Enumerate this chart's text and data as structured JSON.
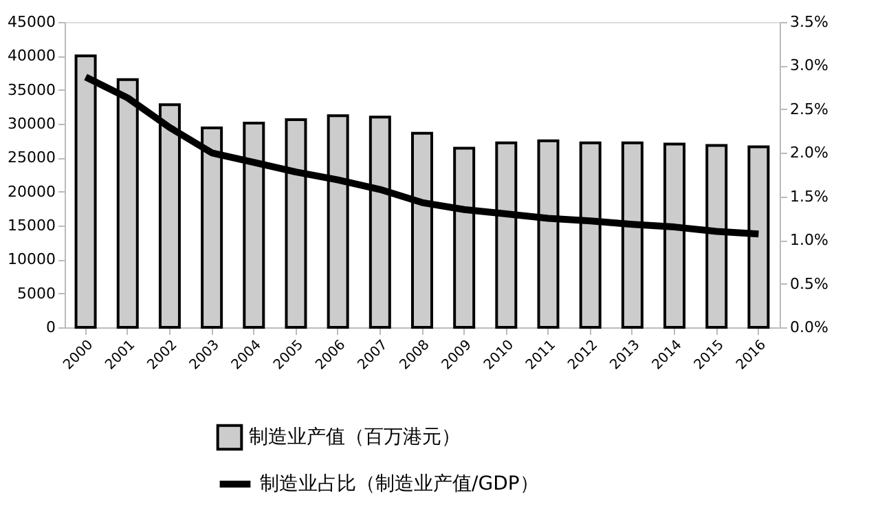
{
  "chart_data": {
    "type": "bar",
    "categories": [
      "2000",
      "2001",
      "2002",
      "2003",
      "2004",
      "2005",
      "2006",
      "2007",
      "2008",
      "2009",
      "2010",
      "2011",
      "2012",
      "2013",
      "2014",
      "2015",
      "2016"
    ],
    "series": [
      {
        "name": "制造业产值（百万港元）",
        "color": "#cccccc",
        "values": [
          40000,
          36500,
          32800,
          29400,
          30100,
          30600,
          31200,
          31000,
          28600,
          26400,
          27200,
          27500,
          27200,
          27200,
          27000,
          26800,
          26600
        ]
      },
      {
        "name": "制造业占比（制造业产值/GDP）",
        "type": "line",
        "axis": "y2",
        "color": "#000000",
        "values": [
          2.87,
          2.63,
          2.29,
          2.0,
          1.89,
          1.78,
          1.69,
          1.58,
          1.43,
          1.35,
          1.3,
          1.25,
          1.22,
          1.18,
          1.15,
          1.1,
          1.07
        ]
      }
    ],
    "ylim": [
      0,
      45000
    ],
    "yticks": [
      0,
      5000,
      10000,
      15000,
      20000,
      25000,
      30000,
      35000,
      40000,
      45000
    ],
    "y2lim": [
      0,
      3.5
    ],
    "y2ticks": [
      {
        "value": 0,
        "label": "0.0%"
      },
      {
        "value": 0.5,
        "label": "0.5%"
      },
      {
        "value": 1,
        "label": "1.0%"
      },
      {
        "value": 1.5,
        "label": "1.5%"
      },
      {
        "value": 2,
        "label": "2.0%"
      },
      {
        "value": 2.5,
        "label": "2.5%"
      },
      {
        "value": 3,
        "label": "3.0%"
      },
      {
        "value": 3.5,
        "label": "3.5%"
      }
    ],
    "legend": "bottom",
    "grid": false,
    "marker": "none",
    "line_style": "solid"
  }
}
